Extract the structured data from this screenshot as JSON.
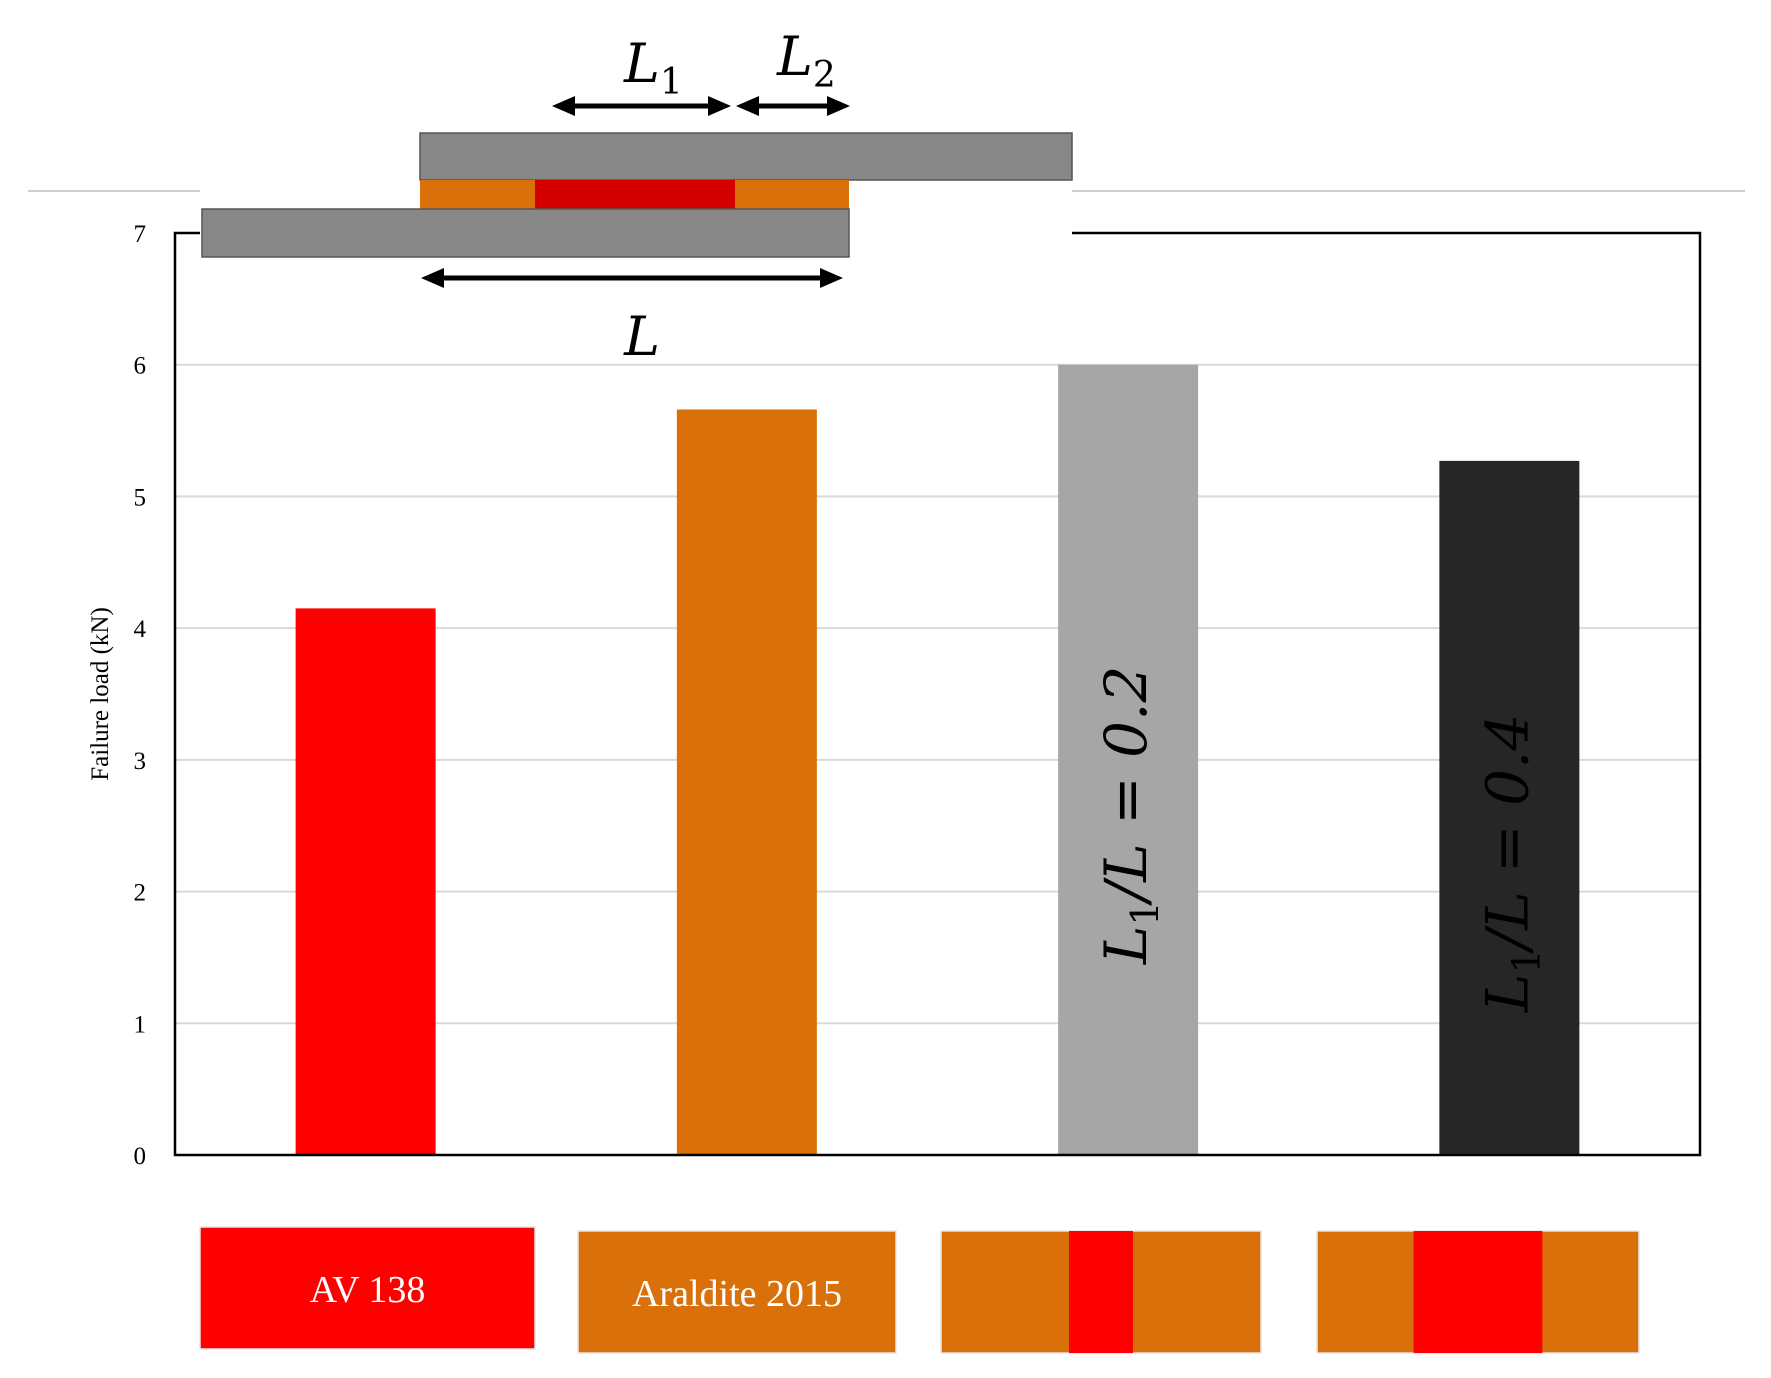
{
  "chart_data": {
    "type": "bar",
    "ylabel": "Failure load (kN)",
    "ylim": [
      0,
      7
    ],
    "yticks": [
      0,
      1,
      2,
      3,
      4,
      5,
      6,
      7
    ],
    "grid": true,
    "categories": [
      "AV 138",
      "Araldite 2015",
      "L1/L = 0.2",
      "L1/L = 0.4"
    ],
    "values": [
      4.15,
      5.66,
      6.0,
      5.27
    ],
    "bar_colors": [
      "#ff0000",
      "#d9700a",
      "#a6a6a6",
      "#262626"
    ],
    "bar_labels": [
      "",
      "",
      "L1/L = 0.2",
      "L1/L = 0.4"
    ]
  },
  "joint_diagram": {
    "label_L1": "L1",
    "label_L2": "L2",
    "label_L": "L",
    "adherend_color": "#878787",
    "outer_adhesive_color": "#d9700a",
    "inner_adhesive_color": "#d40000"
  },
  "legend_swatches": [
    {
      "text": "AV 138",
      "outer_color": "#ff0000",
      "inner_color": "#ff0000",
      "inner_fraction": 0
    },
    {
      "text": "Araldite 2015",
      "outer_color": "#d9700a",
      "inner_color": "#d9700a",
      "inner_fraction": 0
    },
    {
      "text": "",
      "outer_color": "#d9700a",
      "inner_color": "#ff0000",
      "inner_fraction": 0.2
    },
    {
      "text": "",
      "outer_color": "#d9700a",
      "inner_color": "#ff0000",
      "inner_fraction": 0.4
    }
  ]
}
